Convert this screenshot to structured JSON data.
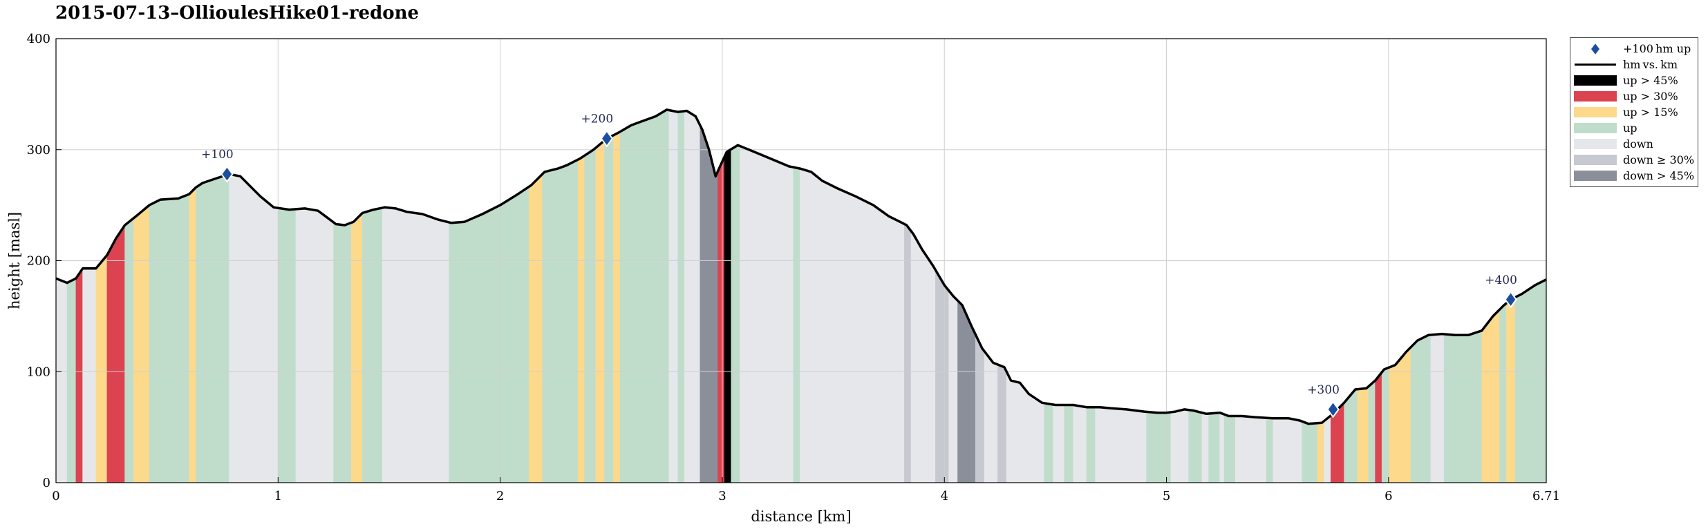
{
  "chart_data": {
    "type": "area",
    "title": "2015-07-13–OllioulesHike01-redone",
    "xlabel": "distance [km]",
    "ylabel": "height [masl]",
    "xlim": [
      0,
      6.71
    ],
    "ylim": [
      0,
      400
    ],
    "x_ticks": [
      {
        "value": 0,
        "label": "0"
      },
      {
        "value": 1,
        "label": "1"
      },
      {
        "value": 2,
        "label": "2"
      },
      {
        "value": 3,
        "label": "3"
      },
      {
        "value": 4,
        "label": "4"
      },
      {
        "value": 5,
        "label": "5"
      },
      {
        "value": 6,
        "label": "6"
      },
      {
        "value": 6.71,
        "label": "6.71"
      }
    ],
    "y_ticks": [
      {
        "value": 0,
        "label": "0"
      },
      {
        "value": 100,
        "label": "100"
      },
      {
        "value": 200,
        "label": "200"
      },
      {
        "value": 300,
        "label": "300"
      },
      {
        "value": 400,
        "label": "400"
      }
    ],
    "grid": true,
    "legend_position": "outside-right",
    "legend": [
      {
        "key": "marker",
        "label": "+100 hm up",
        "color": "#1a4fa0"
      },
      {
        "key": "line",
        "label": "hm vs. km",
        "color": "#000000"
      },
      {
        "key": "up45",
        "label": "up > 45%",
        "color": "#000000"
      },
      {
        "key": "up30",
        "label": "up > 30%",
        "color": "#dc4350"
      },
      {
        "key": "up15",
        "label": "up > 15%",
        "color": "#fdd98c"
      },
      {
        "key": "up",
        "label": "up",
        "color": "#c0ddcc"
      },
      {
        "key": "down",
        "label": "down",
        "color": "#e6e7ea"
      },
      {
        "key": "down30",
        "label": "down ≥ 30%",
        "color": "#c7c9d0"
      },
      {
        "key": "down45",
        "label": "down > 45%",
        "color": "#8b8f99"
      }
    ],
    "colors": {
      "up45": "#000000",
      "up30": "#dc4350",
      "up15": "#fdd98c",
      "up": "#c0ddcc",
      "down": "#e6e7ea",
      "down30": "#c7c9d0",
      "down45": "#8b8f99"
    },
    "profile": [
      [
        0.0,
        184
      ],
      [
        0.05,
        180
      ],
      [
        0.09,
        184
      ],
      [
        0.12,
        193
      ],
      [
        0.18,
        193
      ],
      [
        0.23,
        205
      ],
      [
        0.27,
        220
      ],
      [
        0.31,
        232
      ],
      [
        0.36,
        240
      ],
      [
        0.42,
        250
      ],
      [
        0.47,
        255
      ],
      [
        0.55,
        256
      ],
      [
        0.6,
        260
      ],
      [
        0.63,
        266
      ],
      [
        0.66,
        270
      ],
      [
        0.72,
        274
      ],
      [
        0.78,
        278
      ],
      [
        0.83,
        276
      ],
      [
        0.87,
        268
      ],
      [
        0.92,
        258
      ],
      [
        0.98,
        248
      ],
      [
        1.05,
        246
      ],
      [
        1.12,
        247
      ],
      [
        1.18,
        245
      ],
      [
        1.22,
        239
      ],
      [
        1.26,
        233
      ],
      [
        1.3,
        232
      ],
      [
        1.34,
        235
      ],
      [
        1.38,
        243
      ],
      [
        1.43,
        246
      ],
      [
        1.48,
        248
      ],
      [
        1.53,
        247
      ],
      [
        1.58,
        244
      ],
      [
        1.65,
        242
      ],
      [
        1.72,
        237
      ],
      [
        1.78,
        234
      ],
      [
        1.84,
        235
      ],
      [
        1.92,
        242
      ],
      [
        2.0,
        250
      ],
      [
        2.08,
        260
      ],
      [
        2.14,
        268
      ],
      [
        2.2,
        280
      ],
      [
        2.26,
        283
      ],
      [
        2.3,
        286
      ],
      [
        2.36,
        292
      ],
      [
        2.42,
        300
      ],
      [
        2.48,
        310
      ],
      [
        2.53,
        315
      ],
      [
        2.59,
        322
      ],
      [
        2.63,
        325
      ],
      [
        2.7,
        330
      ],
      [
        2.75,
        336
      ],
      [
        2.8,
        334
      ],
      [
        2.84,
        335
      ],
      [
        2.88,
        330
      ],
      [
        2.91,
        318
      ],
      [
        2.94,
        300
      ],
      [
        2.97,
        276
      ],
      [
        2.99,
        285
      ],
      [
        3.02,
        298
      ],
      [
        3.07,
        304
      ],
      [
        3.12,
        300
      ],
      [
        3.18,
        295
      ],
      [
        3.24,
        290
      ],
      [
        3.3,
        285
      ],
      [
        3.35,
        283
      ],
      [
        3.4,
        280
      ],
      [
        3.45,
        272
      ],
      [
        3.52,
        265
      ],
      [
        3.6,
        258
      ],
      [
        3.68,
        250
      ],
      [
        3.75,
        240
      ],
      [
        3.8,
        235
      ],
      [
        3.83,
        232
      ],
      [
        3.86,
        224
      ],
      [
        3.9,
        210
      ],
      [
        3.95,
        195
      ],
      [
        4.0,
        178
      ],
      [
        4.04,
        168
      ],
      [
        4.08,
        160
      ],
      [
        4.12,
        142
      ],
      [
        4.17,
        121
      ],
      [
        4.22,
        108
      ],
      [
        4.27,
        104
      ],
      [
        4.3,
        92
      ],
      [
        4.34,
        90
      ],
      [
        4.38,
        80
      ],
      [
        4.44,
        72
      ],
      [
        4.5,
        70
      ],
      [
        4.58,
        70
      ],
      [
        4.64,
        68
      ],
      [
        4.7,
        68
      ],
      [
        4.75,
        67
      ],
      [
        4.82,
        66
      ],
      [
        4.9,
        64
      ],
      [
        4.96,
        63
      ],
      [
        5.0,
        63
      ],
      [
        5.04,
        64
      ],
      [
        5.08,
        66
      ],
      [
        5.12,
        65
      ],
      [
        5.18,
        62
      ],
      [
        5.24,
        63
      ],
      [
        5.28,
        60
      ],
      [
        5.34,
        60
      ],
      [
        5.4,
        59
      ],
      [
        5.48,
        58
      ],
      [
        5.55,
        58
      ],
      [
        5.6,
        56
      ],
      [
        5.64,
        53
      ],
      [
        5.7,
        54
      ],
      [
        5.75,
        62
      ],
      [
        5.8,
        72
      ],
      [
        5.85,
        84
      ],
      [
        5.9,
        85
      ],
      [
        5.94,
        92
      ],
      [
        5.98,
        102
      ],
      [
        6.03,
        106
      ],
      [
        6.08,
        118
      ],
      [
        6.13,
        128
      ],
      [
        6.18,
        133
      ],
      [
        6.24,
        134
      ],
      [
        6.3,
        133
      ],
      [
        6.36,
        133
      ],
      [
        6.42,
        137
      ],
      [
        6.47,
        150
      ],
      [
        6.52,
        160
      ],
      [
        6.56,
        166
      ],
      [
        6.6,
        170
      ],
      [
        6.66,
        178
      ],
      [
        6.71,
        183
      ]
    ],
    "segments": [
      [
        0.0,
        0.05,
        "down"
      ],
      [
        0.05,
        0.09,
        "up"
      ],
      [
        0.09,
        0.12,
        "up30"
      ],
      [
        0.12,
        0.18,
        "down"
      ],
      [
        0.18,
        0.23,
        "up15"
      ],
      [
        0.23,
        0.31,
        "up30"
      ],
      [
        0.31,
        0.35,
        "up"
      ],
      [
        0.35,
        0.42,
        "up15"
      ],
      [
        0.42,
        0.6,
        "up"
      ],
      [
        0.6,
        0.63,
        "up15"
      ],
      [
        0.63,
        0.78,
        "up"
      ],
      [
        0.78,
        1.0,
        "down"
      ],
      [
        1.0,
        1.08,
        "up"
      ],
      [
        1.08,
        1.25,
        "down"
      ],
      [
        1.25,
        1.33,
        "up"
      ],
      [
        1.33,
        1.38,
        "up15"
      ],
      [
        1.38,
        1.47,
        "up"
      ],
      [
        1.47,
        1.77,
        "down"
      ],
      [
        1.77,
        2.13,
        "up"
      ],
      [
        2.13,
        2.19,
        "up15"
      ],
      [
        2.19,
        2.35,
        "up"
      ],
      [
        2.35,
        2.38,
        "up15"
      ],
      [
        2.38,
        2.43,
        "up"
      ],
      [
        2.43,
        2.47,
        "up15"
      ],
      [
        2.47,
        2.51,
        "up"
      ],
      [
        2.51,
        2.54,
        "up15"
      ],
      [
        2.54,
        2.76,
        "up"
      ],
      [
        2.76,
        2.8,
        "down"
      ],
      [
        2.8,
        2.83,
        "up"
      ],
      [
        2.83,
        2.9,
        "down"
      ],
      [
        2.9,
        2.98,
        "down45"
      ],
      [
        2.98,
        3.01,
        "up30"
      ],
      [
        3.01,
        3.04,
        "up45"
      ],
      [
        3.04,
        3.08,
        "up"
      ],
      [
        3.08,
        3.32,
        "down"
      ],
      [
        3.32,
        3.35,
        "up"
      ],
      [
        3.35,
        3.82,
        "down"
      ],
      [
        3.82,
        3.85,
        "down30"
      ],
      [
        3.85,
        3.96,
        "down"
      ],
      [
        3.96,
        4.02,
        "down30"
      ],
      [
        4.02,
        4.06,
        "down"
      ],
      [
        4.06,
        4.14,
        "down45"
      ],
      [
        4.14,
        4.18,
        "down30"
      ],
      [
        4.18,
        4.24,
        "down"
      ],
      [
        4.24,
        4.28,
        "down30"
      ],
      [
        4.28,
        4.45,
        "down"
      ],
      [
        4.45,
        4.49,
        "up"
      ],
      [
        4.49,
        4.54,
        "down"
      ],
      [
        4.54,
        4.58,
        "up"
      ],
      [
        4.58,
        4.64,
        "down"
      ],
      [
        4.64,
        4.68,
        "up"
      ],
      [
        4.68,
        4.91,
        "down"
      ],
      [
        4.91,
        5.02,
        "up"
      ],
      [
        5.02,
        5.1,
        "down"
      ],
      [
        5.1,
        5.16,
        "up"
      ],
      [
        5.16,
        5.19,
        "down"
      ],
      [
        5.19,
        5.24,
        "up"
      ],
      [
        5.24,
        5.26,
        "down"
      ],
      [
        5.26,
        5.31,
        "up"
      ],
      [
        5.31,
        5.45,
        "down"
      ],
      [
        5.45,
        5.48,
        "up"
      ],
      [
        5.48,
        5.61,
        "down"
      ],
      [
        5.61,
        5.68,
        "up"
      ],
      [
        5.68,
        5.71,
        "up15"
      ],
      [
        5.71,
        5.74,
        "down"
      ],
      [
        5.74,
        5.8,
        "up30"
      ],
      [
        5.8,
        5.86,
        "up"
      ],
      [
        5.86,
        5.91,
        "up15"
      ],
      [
        5.91,
        5.94,
        "up"
      ],
      [
        5.94,
        5.97,
        "up30"
      ],
      [
        5.97,
        6.0,
        "up"
      ],
      [
        6.0,
        6.1,
        "up15"
      ],
      [
        6.1,
        6.19,
        "up"
      ],
      [
        6.19,
        6.25,
        "down"
      ],
      [
        6.25,
        6.42,
        "up"
      ],
      [
        6.42,
        6.5,
        "up15"
      ],
      [
        6.5,
        6.53,
        "up"
      ],
      [
        6.53,
        6.57,
        "up15"
      ],
      [
        6.57,
        6.71,
        "up"
      ]
    ],
    "markers": [
      {
        "x": 0.77,
        "y": 278,
        "label": "+100"
      },
      {
        "x": 2.48,
        "y": 310,
        "label": "+200"
      },
      {
        "x": 5.75,
        "y": 66,
        "label": "+300"
      },
      {
        "x": 6.55,
        "y": 165,
        "label": "+400"
      }
    ]
  }
}
